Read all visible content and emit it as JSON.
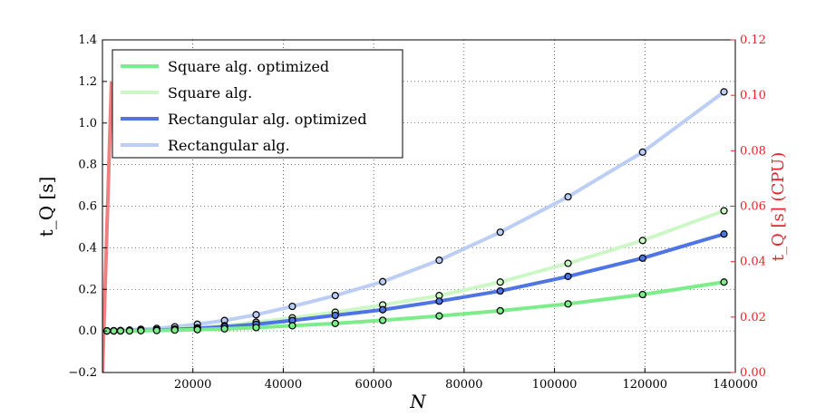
{
  "chart_data": {
    "type": "line",
    "title": "",
    "xlabel": "N",
    "ylabel": "t_Q [s]",
    "ylabel_right": "t_Q [s] (CPU)",
    "xlim": [
      0,
      140000
    ],
    "ylim": [
      -0.2,
      1.4
    ],
    "ylim_right": [
      0.0,
      0.12
    ],
    "x_ticks": [
      "20000",
      "40000",
      "60000",
      "80000",
      "100000",
      "120000",
      "140000"
    ],
    "y_ticks": [
      "−0.2",
      "0.0",
      "0.2",
      "0.4",
      "0.6",
      "0.8",
      "1.0",
      "1.2",
      "1.4"
    ],
    "y_ticks_right": [
      "0.00",
      "0.02",
      "0.04",
      "0.06",
      "0.08",
      "0.10",
      "0.12"
    ],
    "grid": true,
    "legend_position": "top-left",
    "colors": {
      "right_axis": "#e8242a",
      "cpu_line": "#f08080"
    },
    "x": [
      1000,
      2500,
      4000,
      6000,
      8500,
      12000,
      16000,
      21000,
      27000,
      34000,
      42000,
      51500,
      62000,
      74500,
      88000,
      103000,
      119500,
      137500
    ],
    "series": [
      {
        "name": "Square alg. optimized",
        "color": "#7ced8a",
        "values": [
          0.0,
          0.0,
          0.0,
          0.0,
          0.001,
          0.002,
          0.004,
          0.006,
          0.01,
          0.016,
          0.025,
          0.036,
          0.051,
          0.072,
          0.097,
          0.13,
          0.175,
          0.235
        ]
      },
      {
        "name": "Square alg.",
        "color": "#cdf7c6",
        "values": [
          0.0,
          0.0,
          0.001,
          0.001,
          0.003,
          0.005,
          0.009,
          0.015,
          0.025,
          0.042,
          0.063,
          0.09,
          0.125,
          0.17,
          0.235,
          0.325,
          0.435,
          0.578
        ]
      },
      {
        "name": "Rectangular alg. optimized",
        "color": "#4f74e3",
        "values": [
          0.0,
          0.0,
          0.0,
          0.001,
          0.002,
          0.004,
          0.007,
          0.012,
          0.02,
          0.032,
          0.05,
          0.075,
          0.102,
          0.143,
          0.192,
          0.262,
          0.35,
          0.466
        ]
      },
      {
        "name": "Rectangular alg.",
        "color": "#bccef4",
        "values": [
          0.0,
          0.001,
          0.002,
          0.004,
          0.008,
          0.012,
          0.02,
          0.032,
          0.05,
          0.078,
          0.118,
          0.17,
          0.237,
          0.34,
          0.475,
          0.645,
          0.86,
          1.15
        ]
      }
    ],
    "cpu_series": {
      "color": "#f08080",
      "x": [
        0,
        2000
      ],
      "values_right": [
        0.0,
        0.105
      ]
    }
  }
}
